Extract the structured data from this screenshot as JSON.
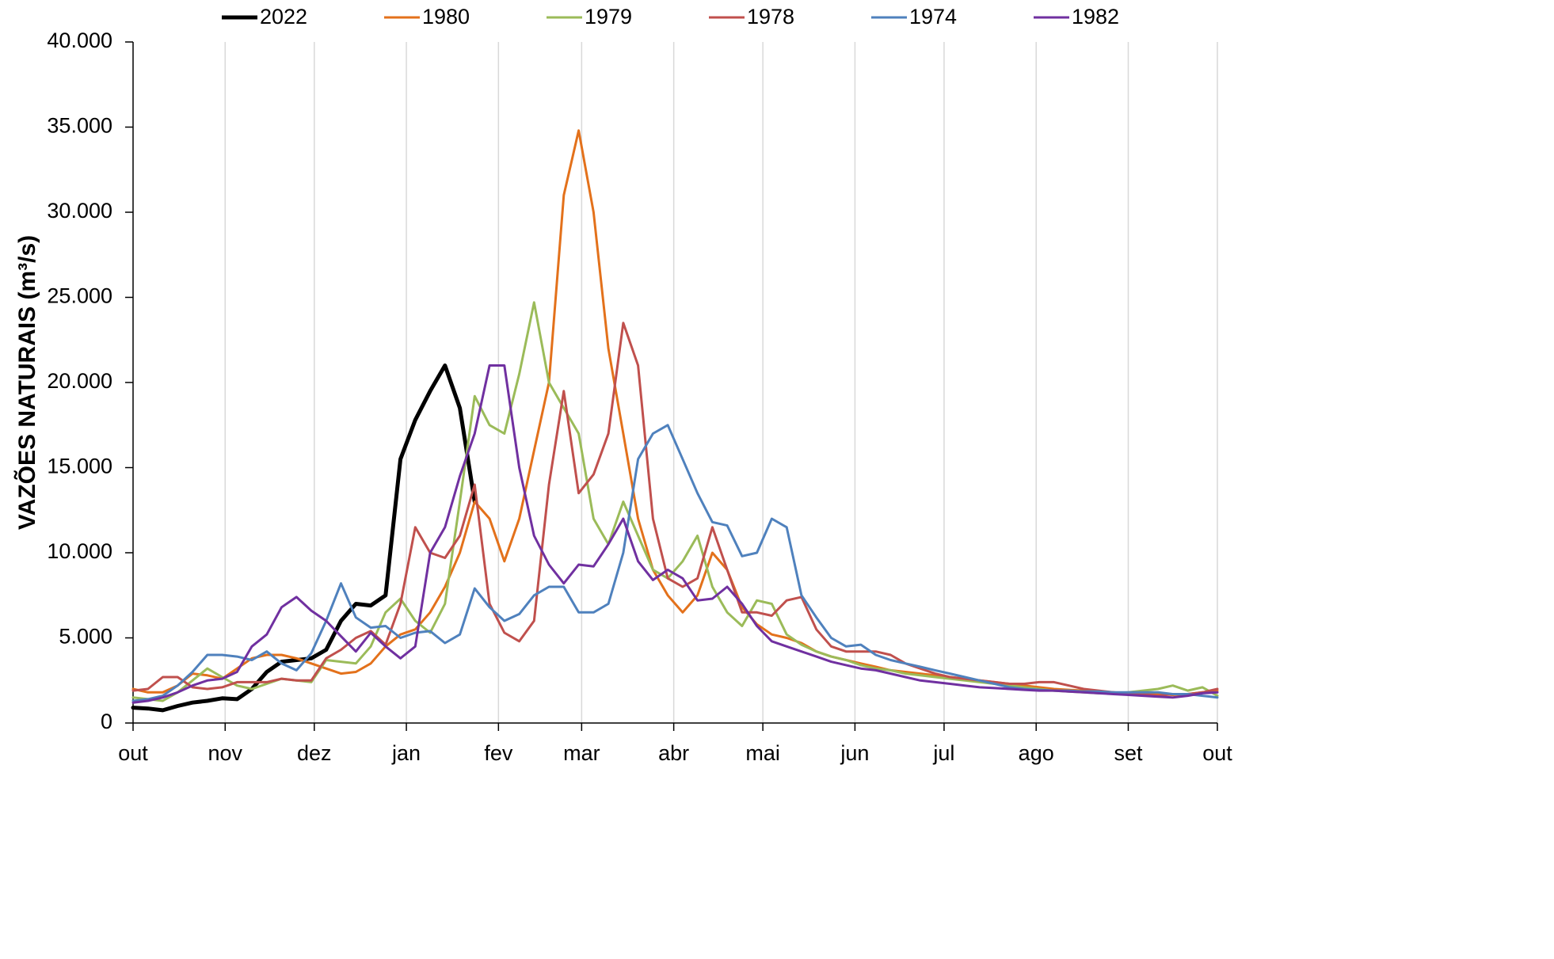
{
  "chart_data": {
    "type": "line",
    "ylabel": "VAZÕES NATURAIS (m³/s)",
    "xlim": [
      0,
      365
    ],
    "xticks": [
      {
        "value": 0,
        "label": "out"
      },
      {
        "value": 31,
        "label": "nov"
      },
      {
        "value": 61,
        "label": "dez"
      },
      {
        "value": 92,
        "label": "jan"
      },
      {
        "value": 123,
        "label": "fev"
      },
      {
        "value": 151,
        "label": "mar"
      },
      {
        "value": 182,
        "label": "abr"
      },
      {
        "value": 212,
        "label": "mai"
      },
      {
        "value": 243,
        "label": "jun"
      },
      {
        "value": 273,
        "label": "jul"
      },
      {
        "value": 304,
        "label": "ago"
      },
      {
        "value": 335,
        "label": "set"
      },
      {
        "value": 365,
        "label": "out"
      }
    ],
    "ylim": [
      0,
      40000
    ],
    "yticks": [
      0,
      {
        "value": 5000,
        "label": "5.000"
      },
      {
        "value": 10000,
        "label": "10.000"
      },
      {
        "value": 15000,
        "label": "15.000"
      },
      {
        "value": 20000,
        "label": "20.000"
      },
      {
        "value": 25000,
        "label": "25.000"
      },
      {
        "value": 30000,
        "label": "30.000"
      },
      {
        "value": 35000,
        "label": "35.000"
      },
      {
        "value": 40000,
        "label": "40.000"
      }
    ],
    "grid": "x",
    "legend": "top",
    "x": [
      0,
      5,
      10,
      15,
      20,
      25,
      30,
      35,
      40,
      45,
      50,
      55,
      60,
      65,
      70,
      75,
      80,
      85,
      90,
      95,
      100,
      105,
      110,
      115,
      120,
      125,
      130,
      135,
      140,
      145,
      150,
      155,
      160,
      165,
      170,
      175,
      180,
      185,
      190,
      195,
      200,
      205,
      210,
      215,
      220,
      225,
      230,
      235,
      240,
      245,
      250,
      255,
      260,
      265,
      270,
      275,
      280,
      285,
      290,
      295,
      300,
      305,
      310,
      315,
      320,
      325,
      330,
      335,
      340,
      345,
      350,
      355,
      360,
      365
    ],
    "series": [
      {
        "name": "2022",
        "color": "#000000",
        "width": 5,
        "values": [
          900,
          850,
          750,
          1000,
          1200,
          1300,
          1450,
          1400,
          2000,
          3000,
          3600,
          3700,
          3800,
          4300,
          6000,
          7000,
          6900,
          7500,
          15500,
          17800,
          19500,
          21000,
          18500,
          13000,
          null,
          null,
          null,
          null,
          null,
          null,
          null,
          null,
          null,
          null,
          null,
          null,
          null,
          null,
          null,
          null,
          null,
          null,
          null,
          null,
          null,
          null,
          null,
          null,
          null,
          null,
          null,
          null,
          null,
          null,
          null,
          null,
          null,
          null,
          null,
          null,
          null,
          null,
          null,
          null,
          null,
          null,
          null,
          null,
          null,
          null,
          null,
          null,
          null,
          null
        ]
      },
      {
        "name": "1980",
        "color": "#e3711b",
        "width": 3,
        "values": [
          2000,
          1800,
          1800,
          2200,
          2900,
          2800,
          2600,
          3200,
          3800,
          4000,
          4000,
          3800,
          3500,
          3200,
          2900,
          3000,
          3500,
          4500,
          5200,
          5500,
          6500,
          8000,
          10000,
          13000,
          12000,
          9500,
          12000,
          16000,
          20000,
          31000,
          34800,
          30000,
          22000,
          17000,
          12000,
          9000,
          7500,
          6500,
          7500,
          10000,
          9000,
          6800,
          5800,
          5200,
          5000,
          4700,
          4200,
          3900,
          3700,
          3500,
          3300,
          3100,
          3000,
          2900,
          2800,
          2700,
          2600,
          2500,
          2400,
          2300,
          2200,
          2100,
          2000,
          1950,
          1900,
          1850,
          1800,
          1750,
          1700,
          1700,
          1650,
          1700,
          1800,
          1900
        ]
      },
      {
        "name": "1979",
        "color": "#9bbb59",
        "width": 3,
        "values": [
          1500,
          1400,
          1300,
          1800,
          2500,
          3200,
          2700,
          2200,
          2000,
          2300,
          2600,
          2500,
          2400,
          3700,
          3600,
          3500,
          4500,
          6500,
          7300,
          6000,
          5300,
          7000,
          13000,
          19200,
          17500,
          17000,
          20500,
          24700,
          20000,
          18500,
          17000,
          12000,
          10500,
          13000,
          11000,
          9000,
          8500,
          9500,
          11000,
          8000,
          6500,
          5700,
          7200,
          7000,
          5200,
          4600,
          4200,
          3900,
          3700,
          3400,
          3200,
          3100,
          2900,
          2800,
          2700,
          2600,
          2500,
          2400,
          2300,
          2200,
          2100,
          2000,
          1900,
          1850,
          1800,
          1750,
          1750,
          1800,
          1900,
          2000,
          2200,
          1900,
          2100,
          1600
        ]
      },
      {
        "name": "1978",
        "color": "#c0504d",
        "width": 3,
        "values": [
          1900,
          2000,
          2700,
          2700,
          2100,
          2000,
          2100,
          2400,
          2400,
          2400,
          2600,
          2500,
          2500,
          3800,
          4300,
          5000,
          5400,
          4600,
          7000,
          11500,
          10000,
          9700,
          11000,
          14000,
          7000,
          5300,
          4800,
          6000,
          14000,
          19500,
          13500,
          14600,
          17000,
          23500,
          21000,
          12000,
          8500,
          8000,
          8500,
          11500,
          9000,
          6500,
          6500,
          6300,
          7200,
          7400,
          5500,
          4500,
          4200,
          4200,
          4200,
          4000,
          3500,
          3200,
          2900,
          2700,
          2600,
          2500,
          2400,
          2300,
          2300,
          2400,
          2400,
          2200,
          2000,
          1900,
          1800,
          1700,
          1700,
          1600,
          1700,
          1700,
          1800,
          2000
        ]
      },
      {
        "name": "1974",
        "color": "#4f81bd",
        "width": 3,
        "values": [
          1300,
          1400,
          1600,
          2200,
          3000,
          4000,
          4000,
          3900,
          3700,
          4200,
          3500,
          3100,
          4100,
          6000,
          8200,
          6200,
          5600,
          5700,
          5000,
          5300,
          5400,
          4700,
          5200,
          7900,
          6800,
          6000,
          6400,
          7500,
          8000,
          8000,
          6500,
          6500,
          7000,
          10000,
          15500,
          17000,
          17500,
          15500,
          13500,
          11800,
          11600,
          9800,
          10000,
          12000,
          11500,
          7500,
          6200,
          5000,
          4500,
          4600,
          4000,
          3700,
          3500,
          3300,
          3100,
          2900,
          2700,
          2500,
          2300,
          2100,
          2000,
          1950,
          1900,
          1900,
          1850,
          1850,
          1800,
          1800,
          1800,
          1800,
          1700,
          1700,
          1600,
          1500
        ]
      },
      {
        "name": "1982",
        "color": "#7030a0",
        "width": 3,
        "values": [
          1200,
          1300,
          1500,
          1800,
          2200,
          2500,
          2600,
          3000,
          4500,
          5200,
          6800,
          7400,
          6600,
          6000,
          5100,
          4200,
          5300,
          4500,
          3800,
          4500,
          10000,
          11500,
          14500,
          17000,
          21000,
          21000,
          15000,
          11000,
          9300,
          8200,
          9300,
          9200,
          10500,
          12000,
          9500,
          8400,
          9000,
          8500,
          7200,
          7300,
          8000,
          7000,
          5700,
          4800,
          4500,
          4200,
          3900,
          3600,
          3400,
          3200,
          3100,
          2900,
          2700,
          2500,
          2400,
          2300,
          2200,
          2100,
          2050,
          2000,
          1950,
          1900,
          1900,
          1850,
          1800,
          1750,
          1700,
          1650,
          1600,
          1550,
          1500,
          1600,
          1750,
          1800
        ]
      }
    ]
  }
}
